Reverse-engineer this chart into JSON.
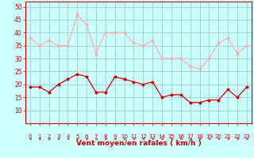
{
  "x": [
    0,
    1,
    2,
    3,
    4,
    5,
    6,
    7,
    8,
    9,
    10,
    11,
    12,
    13,
    14,
    15,
    16,
    17,
    18,
    19,
    20,
    21,
    22,
    23
  ],
  "wind_avg": [
    19,
    19,
    17,
    20,
    22,
    24,
    23,
    17,
    17,
    23,
    22,
    21,
    20,
    21,
    15,
    16,
    16,
    13,
    13,
    14,
    14,
    18,
    15,
    19
  ],
  "wind_gust": [
    38,
    35,
    37,
    35,
    35,
    47,
    43,
    32,
    40,
    40,
    40,
    36,
    35,
    37,
    30,
    30,
    30,
    27,
    26,
    30,
    36,
    38,
    32,
    35
  ],
  "avg_color": "#cc0000",
  "gust_color": "#ffaaaa",
  "bg_color": "#ccffff",
  "grid_color": "#99cccc",
  "xlabel": "Vent moyen/en rafales ( km/h )",
  "xlabel_color": "#cc0000",
  "ylim": [
    5,
    52
  ],
  "yticks": [
    10,
    15,
    20,
    25,
    30,
    35,
    40,
    45,
    50
  ],
  "xlim": [
    -0.5,
    23.5
  ],
  "tick_color": "#cc0000",
  "spine_color": "#cc0000"
}
